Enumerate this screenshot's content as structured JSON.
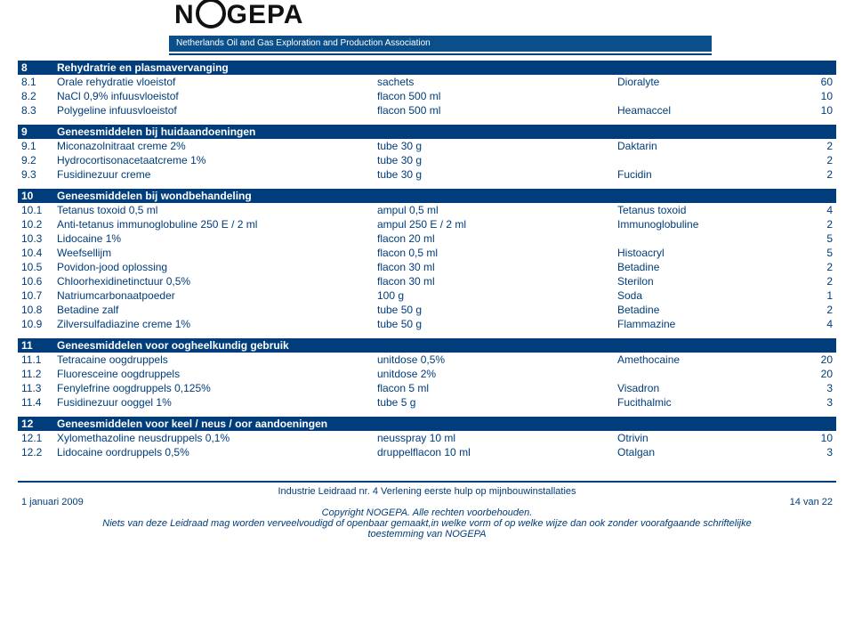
{
  "logo": {
    "tagline": "Netherlands Oil and Gas Exploration and Production Association"
  },
  "colors": {
    "brand": "#003d7a",
    "text_blue": "#003d7a"
  },
  "sections": [
    {
      "num": "8",
      "title": "Rehydratrie en plasmavervanging",
      "rows": [
        {
          "n": "8.1",
          "name": "Orale rehydratie vloeistof",
          "dose": "sachets",
          "brand": "Dioralyte",
          "qty": "60"
        },
        {
          "n": "8.2",
          "name": "NaCl 0,9% infuusvloeistof",
          "dose": "flacon 500 ml",
          "brand": "",
          "qty": "10"
        },
        {
          "n": "8.3",
          "name": "Polygeline infuusvloeistof",
          "dose": "flacon 500 ml",
          "brand": "Heamaccel",
          "qty": "10"
        }
      ]
    },
    {
      "num": "9",
      "title": "Geneesmiddelen bij huidaandoeningen",
      "rows": [
        {
          "n": "9.1",
          "name": "Miconazolnitraat creme 2%",
          "dose": "tube 30 g",
          "brand": "Daktarin",
          "qty": "2"
        },
        {
          "n": "9.2",
          "name": "Hydrocortisonacetaatcreme 1%",
          "dose": "tube 30 g",
          "brand": "",
          "qty": "2"
        },
        {
          "n": "9.3",
          "name": "Fusidinezuur creme",
          "dose": "tube 30 g",
          "brand": "Fucidin",
          "qty": "2"
        }
      ]
    },
    {
      "num": "10",
      "title": "Geneesmiddelen bij wondbehandeling",
      "rows": [
        {
          "n": "10.1",
          "name": "Tetanus toxoid 0,5 ml",
          "dose": "ampul 0,5 ml",
          "brand": "Tetanus toxoid",
          "qty": "4"
        },
        {
          "n": "10.2",
          "name": "Anti-tetanus immunoglobuline 250 E / 2 ml",
          "dose": "ampul 250 E / 2 ml",
          "brand": "Immunoglobuline",
          "qty": "2"
        },
        {
          "n": "10.3",
          "name": "Lidocaine 1%",
          "dose": "flacon 20 ml",
          "brand": "",
          "qty": "5"
        },
        {
          "n": "10.4",
          "name": "Weefsellijm",
          "dose": "flacon 0,5 ml",
          "brand": "Histoacryl",
          "qty": "5"
        },
        {
          "n": "10.5",
          "name": "Povidon-jood oplossing",
          "dose": "flacon 30 ml",
          "brand": "Betadine",
          "qty": "2"
        },
        {
          "n": "10.6",
          "name": "Chloorhexidinetinctuur 0,5%",
          "dose": "flacon 30 ml",
          "brand": "Sterilon",
          "qty": "2"
        },
        {
          "n": "10.7",
          "name": "Natriumcarbonaatpoeder",
          "dose": "100 g",
          "brand": "Soda",
          "qty": "1"
        },
        {
          "n": "10.8",
          "name": "Betadine zalf",
          "dose": "tube 50 g",
          "brand": "Betadine",
          "qty": "2"
        },
        {
          "n": "10.9",
          "name": "Zilversulfadiazine creme 1%",
          "dose": "tube 50 g",
          "brand": "Flammazine",
          "qty": "4"
        }
      ]
    },
    {
      "num": "11",
      "title": "Geneesmiddelen voor oogheelkundig gebruik",
      "rows": [
        {
          "n": "11.1",
          "name": "Tetracaine oogdruppels",
          "dose": "unitdose 0,5%",
          "brand": "Amethocaine",
          "qty": "20"
        },
        {
          "n": "11.2",
          "name": "Fluoresceine oogdruppels",
          "dose": "unitdose 2%",
          "brand": "",
          "qty": "20"
        },
        {
          "n": "11.3",
          "name": "Fenylefrine oogdruppels 0,125%",
          "dose": "flacon 5 ml",
          "brand": "Visadron",
          "qty": "3"
        },
        {
          "n": "11.4",
          "name": "Fusidinezuur ooggel 1%",
          "dose": "tube 5 g",
          "brand": "Fucithalmic",
          "qty": "3"
        }
      ]
    },
    {
      "num": "12",
      "title": "Geneesmiddelen voor keel / neus / oor aandoeningen",
      "rows": [
        {
          "n": "12.1",
          "name": "Xylomethazoline neusdruppels 0,1%",
          "dose": "neusspray 10 ml",
          "brand": "Otrivin",
          "qty": "10"
        },
        {
          "n": "12.2",
          "name": "Lidocaine oordruppels 0,5%",
          "dose": "druppelflacon 10 ml",
          "brand": "Otalgan",
          "qty": "3"
        }
      ]
    }
  ],
  "footer": {
    "title": "Industrie Leidraad nr. 4 Verlening eerste hulp op mijnbouwinstallaties",
    "date": "1 januari 2009",
    "page": "14 van 22",
    "copyright": "Copyright NOGEPA. Alle rechten voorbehouden.",
    "disclaimer1": "Niets van deze Leidraad mag worden verveelvoudigd of openbaar gemaakt,in welke vorm of op welke wijze dan ook zonder voorafgaande schriftelijke",
    "disclaimer2": "toestemming van NOGEPA"
  }
}
